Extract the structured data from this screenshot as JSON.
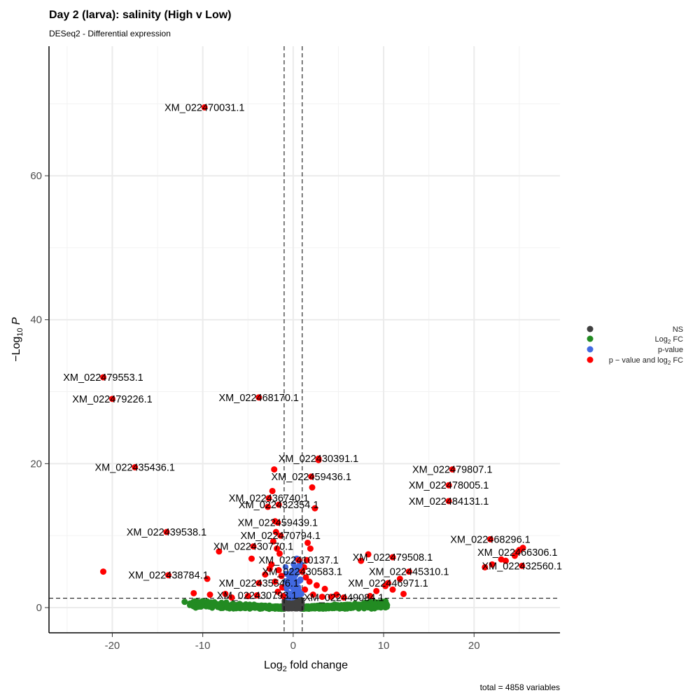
{
  "chart_data": {
    "type": "scatter",
    "title": "Day 2 (larva): salinity (High v Low)",
    "subtitle": "DESeq2 - Differential expression",
    "xlabel": "Log2 fold change",
    "ylabel": "-Log10 P",
    "caption": "total = 4858 variables",
    "xlim": [
      -27,
      29.5
    ],
    "ylim": [
      -3.5,
      78
    ],
    "x_ticks": [
      -20,
      -10,
      0,
      10,
      20
    ],
    "y_ticks": [
      0,
      20,
      40,
      60
    ],
    "grid": true,
    "cutoffs": {
      "log2fc": [
        -1,
        1
      ],
      "neg_log10_p": 1.3
    },
    "colors": {
      "NS": "#404040",
      "log2fc": "#228B22",
      "pvalue": "#4169E1",
      "both": "#FF0000"
    },
    "legend": {
      "position": "right",
      "items": [
        {
          "key": "NS",
          "label": "NS"
        },
        {
          "key": "log2fc",
          "label": "Log2 FC"
        },
        {
          "key": "pvalue",
          "label": "p-value"
        },
        {
          "key": "both",
          "label": "p-value and log2 FC"
        }
      ]
    },
    "labeled_points": [
      {
        "name": "XM_022470031.1",
        "x": -9.8,
        "y": 69.5
      },
      {
        "name": "XM_022479553.1",
        "x": -21.0,
        "y": 32.0
      },
      {
        "name": "XM_022479226.1",
        "x": -20.0,
        "y": 29.0
      },
      {
        "name": "XM_022468170.1",
        "x": -3.8,
        "y": 29.2
      },
      {
        "name": "XM_022430391.1",
        "x": 2.8,
        "y": 20.7
      },
      {
        "name": "XM_022435436.1",
        "x": -17.5,
        "y": 19.5
      },
      {
        "name": "XM_022479807.1",
        "x": 17.6,
        "y": 19.2
      },
      {
        "name": "XM_022459436.1",
        "x": 2.0,
        "y": 18.2
      },
      {
        "name": "XM_022478005.1",
        "x": 17.2,
        "y": 17.0
      },
      {
        "name": "XM_022436740.1",
        "x": -2.7,
        "y": 15.2
      },
      {
        "name": "XM_022484131.1",
        "x": 17.2,
        "y": 14.8
      },
      {
        "name": "XM_022432354.1",
        "x": -1.6,
        "y": 14.3
      },
      {
        "name": "XM_022459439.1",
        "x": -1.7,
        "y": 11.8
      },
      {
        "name": "XM_022470794.1",
        "x": -1.4,
        "y": 10.0
      },
      {
        "name": "XM_022439538.1",
        "x": -14.0,
        "y": 10.5
      },
      {
        "name": "XM_022468296.1",
        "x": 21.8,
        "y": 9.5
      },
      {
        "name": "XM_022430770.1",
        "x": -4.4,
        "y": 8.5
      },
      {
        "name": "XM_022466306.1",
        "x": 24.8,
        "y": 7.7
      },
      {
        "name": "XM_022479508.1",
        "x": 11.0,
        "y": 7.0
      },
      {
        "name": "XM_022410137.1",
        "x": 0.6,
        "y": 6.6
      },
      {
        "name": "XM_022432560.1",
        "x": 25.3,
        "y": 5.8
      },
      {
        "name": "XM_022430583.1",
        "x": 1.0,
        "y": 5.0
      },
      {
        "name": "XM_022445310.1",
        "x": 12.8,
        "y": 5.0
      },
      {
        "name": "XM_022438784.1",
        "x": -13.8,
        "y": 4.5
      },
      {
        "name": "XM_022435546.1",
        "x": -3.8,
        "y": 3.4
      },
      {
        "name": "XM_022446971.1",
        "x": 10.5,
        "y": 3.4
      },
      {
        "name": "XM_022430793.1",
        "x": -4.0,
        "y": 1.7
      },
      {
        "name": "XM_022449084.1",
        "x": 5.6,
        "y": 1.4
      }
    ],
    "extra_points": [
      {
        "x": -21.0,
        "y": 5.0
      },
      {
        "x": -11.0,
        "y": 2.0
      },
      {
        "x": -9.5,
        "y": 4.0
      },
      {
        "x": -9.2,
        "y": 1.8
      },
      {
        "x": -8.2,
        "y": 7.8
      },
      {
        "x": -7.5,
        "y": 1.9
      },
      {
        "x": -6.8,
        "y": 1.4
      },
      {
        "x": -5.0,
        "y": 1.6
      },
      {
        "x": -4.6,
        "y": 6.8
      },
      {
        "x": -2.1,
        "y": 19.2
      },
      {
        "x": -2.3,
        "y": 16.2
      },
      {
        "x": -2.8,
        "y": 14.0
      },
      {
        "x": -2.0,
        "y": 12.0
      },
      {
        "x": -1.9,
        "y": 10.5
      },
      {
        "x": -2.2,
        "y": 9.2
      },
      {
        "x": -1.8,
        "y": 8.2
      },
      {
        "x": -1.5,
        "y": 7.5
      },
      {
        "x": -2.4,
        "y": 6.0
      },
      {
        "x": -1.6,
        "y": 5.2
      },
      {
        "x": -1.3,
        "y": 4.4
      },
      {
        "x": -2.0,
        "y": 3.6
      },
      {
        "x": -1.2,
        "y": 2.8
      },
      {
        "x": -1.7,
        "y": 2.2
      },
      {
        "x": -1.1,
        "y": 1.6
      },
      {
        "x": -3.1,
        "y": 4.6
      },
      {
        "x": -2.6,
        "y": 5.4
      },
      {
        "x": 1.6,
        "y": 9.0
      },
      {
        "x": 1.9,
        "y": 8.2
      },
      {
        "x": 1.5,
        "y": 6.6
      },
      {
        "x": 2.1,
        "y": 16.7
      },
      {
        "x": 1.2,
        "y": 5.6
      },
      {
        "x": 1.4,
        "y": 4.2
      },
      {
        "x": 1.8,
        "y": 3.6
      },
      {
        "x": 2.6,
        "y": 3.1
      },
      {
        "x": 1.3,
        "y": 2.5
      },
      {
        "x": 2.2,
        "y": 1.8
      },
      {
        "x": 3.2,
        "y": 1.5
      },
      {
        "x": 2.4,
        "y": 13.8
      },
      {
        "x": 2.8,
        "y": 20.5
      },
      {
        "x": 3.5,
        "y": 2.6
      },
      {
        "x": 4.2,
        "y": 1.5
      },
      {
        "x": 4.8,
        "y": 1.8
      },
      {
        "x": 7.5,
        "y": 6.5
      },
      {
        "x": 8.3,
        "y": 7.4
      },
      {
        "x": 9.2,
        "y": 2.3
      },
      {
        "x": 10.2,
        "y": 3.0
      },
      {
        "x": 11.0,
        "y": 2.5
      },
      {
        "x": 11.8,
        "y": 4.0
      },
      {
        "x": 12.2,
        "y": 1.9
      },
      {
        "x": 8.5,
        "y": 1.6
      },
      {
        "x": 21.2,
        "y": 5.6
      },
      {
        "x": 22.0,
        "y": 6.0
      },
      {
        "x": 23.0,
        "y": 6.7
      },
      {
        "x": 23.5,
        "y": 6.5
      },
      {
        "x": 24.5,
        "y": 7.2
      },
      {
        "x": 25.0,
        "y": 8.0
      },
      {
        "x": 25.4,
        "y": 8.3
      },
      {
        "x": -12.0,
        "y": 0.8
      },
      {
        "x": -10.0,
        "y": 0.9
      },
      {
        "x": -8.8,
        "y": 0.7
      },
      {
        "x": 0.4,
        "y": 6.8
      },
      {
        "x": 0.7,
        "y": 5.8
      },
      {
        "x": 0.5,
        "y": 4.9
      },
      {
        "x": 0.8,
        "y": 3.9
      },
      {
        "x": 0.3,
        "y": 3.0
      },
      {
        "x": 0.6,
        "y": 2.4
      },
      {
        "x": -0.5,
        "y": 2.0
      },
      {
        "x": -0.7,
        "y": 2.8
      },
      {
        "x": 0.9,
        "y": 1.9
      }
    ]
  }
}
